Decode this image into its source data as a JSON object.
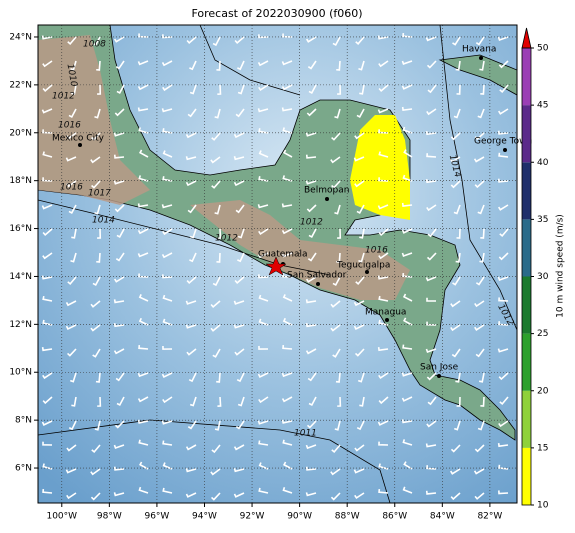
{
  "title": "Forecast of 2022030900 (f060)",
  "map": {
    "lonlim": [
      -101,
      -80.86
    ],
    "latlim": [
      4.54,
      24.5
    ],
    "lonticks": [
      {
        "value": -100,
        "label": "100°W"
      },
      {
        "value": -98,
        "label": "98°W"
      },
      {
        "value": -96,
        "label": "96°W"
      },
      {
        "value": -94,
        "label": "94°W"
      },
      {
        "value": -92,
        "label": "92°W"
      },
      {
        "value": -90,
        "label": "90°W"
      },
      {
        "value": -88,
        "label": "88°W"
      },
      {
        "value": -86,
        "label": "86°W"
      },
      {
        "value": -84,
        "label": "84°W"
      },
      {
        "value": -82,
        "label": "82°W"
      }
    ],
    "latticks": [
      {
        "value": 6,
        "label": "6°N"
      },
      {
        "value": 8,
        "label": "8°N"
      },
      {
        "value": 10,
        "label": "10°N"
      },
      {
        "value": 12,
        "label": "12°N"
      },
      {
        "value": 14,
        "label": "14°N"
      },
      {
        "value": 16,
        "label": "16°N"
      },
      {
        "value": 18,
        "label": "18°N"
      },
      {
        "value": 20,
        "label": "20°N"
      },
      {
        "value": 22,
        "label": "22°N"
      },
      {
        "value": 24,
        "label": "24°N"
      }
    ],
    "cities": [
      "Havana",
      "George Town",
      "Mexico City",
      "Belmopan",
      "Guatemala",
      "San Salvador",
      "Tegucigalpa",
      "Managua",
      "San Jose"
    ],
    "contour_labels": [
      "1008",
      "1010",
      "1012",
      "1016",
      "1016",
      "1017",
      "1014",
      "1012",
      "1012",
      "1016",
      "1014",
      "1012",
      "1011"
    ]
  },
  "colorbar": {
    "label": "10 m wind speed (m/s)",
    "lim": [
      10,
      50
    ],
    "ticks": [
      10,
      15,
      20,
      25,
      30,
      35,
      40,
      45,
      50
    ],
    "colors": [
      "#ffff00",
      "#8fd13a",
      "#2ca02c",
      "#1b7a2e",
      "#2a6b8a",
      "#1f2f6b",
      "#5b2a8a",
      "#9b3fb5"
    ],
    "extend_color": "#e00000"
  }
}
